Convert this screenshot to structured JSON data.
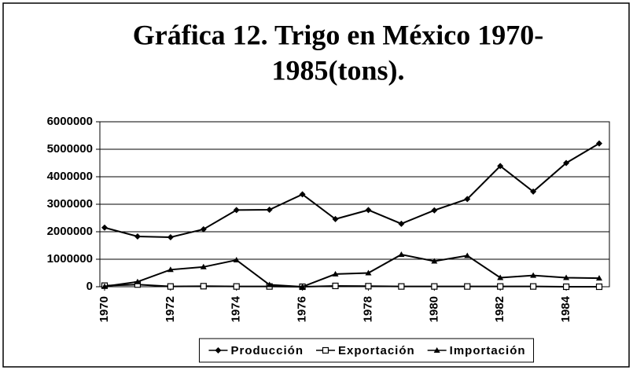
{
  "chart_data": {
    "type": "line",
    "title": [
      "Gráfica 12. Trigo en México 1970-",
      "1985(tons)."
    ],
    "x": [
      1970,
      1971,
      1972,
      1973,
      1974,
      1975,
      1976,
      1977,
      1978,
      1979,
      1980,
      1981,
      1982,
      1983,
      1984,
      1985
    ],
    "series": [
      {
        "name": "Producción",
        "color": "#000000",
        "marker": "diamond",
        "values": [
          2150000,
          1830000,
          1800000,
          2090000,
          2790000,
          2800000,
          3360000,
          2460000,
          2790000,
          2290000,
          2780000,
          3190000,
          4390000,
          3460000,
          4500000,
          5210000
        ]
      },
      {
        "name": "Exportación",
        "color": "#000000",
        "marker": "square",
        "values": [
          40000,
          80000,
          10000,
          20000,
          10000,
          10000,
          0,
          30000,
          20000,
          10000,
          10000,
          10000,
          10000,
          10000,
          0,
          0
        ]
      },
      {
        "name": "Importación",
        "color": "#000000",
        "marker": "triangle",
        "values": [
          10000,
          180000,
          620000,
          720000,
          970000,
          70000,
          0,
          460000,
          500000,
          1170000,
          930000,
          1130000,
          330000,
          410000,
          330000,
          310000
        ]
      }
    ],
    "xlim": [
      1970,
      1985
    ],
    "xticks": [
      1970,
      1972,
      1974,
      1976,
      1978,
      1980,
      1982,
      1984
    ],
    "ylim": [
      0,
      6000000
    ],
    "yticks": [
      0,
      1000000,
      2000000,
      3000000,
      4000000,
      5000000,
      6000000
    ],
    "grid": true,
    "legend": "bottom"
  }
}
